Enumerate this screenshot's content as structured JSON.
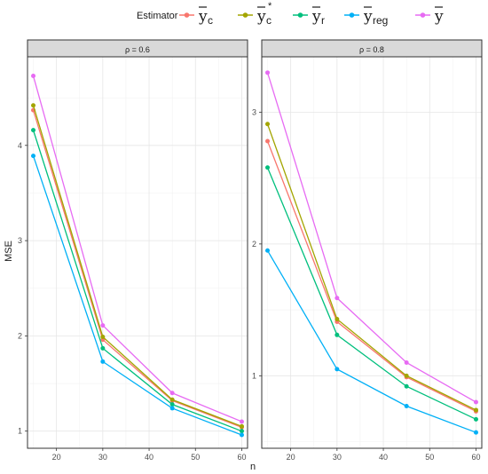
{
  "legend": {
    "title": "Estimator",
    "entries": [
      {
        "key": "yc",
        "main": "y",
        "sub": "c",
        "sup": "",
        "color": "#F8766D"
      },
      {
        "key": "yc_star",
        "main": "y",
        "sub": "c",
        "sup": "*",
        "color": "#A3A500"
      },
      {
        "key": "yr",
        "main": "y",
        "sub": "r",
        "sup": "",
        "color": "#00BF7D"
      },
      {
        "key": "yreg",
        "main": "y",
        "sub": "reg",
        "sup": "",
        "color": "#00B0F6"
      },
      {
        "key": "ybar",
        "main": "y",
        "sub": "",
        "sup": "",
        "color": "#E76BF3"
      }
    ]
  },
  "ylabel": "MSE",
  "xlabel": "n",
  "chart_data": [
    {
      "type": "line",
      "strip": "ρ = 0.6",
      "x": [
        15,
        30,
        45,
        60
      ],
      "xticks": [
        20,
        30,
        40,
        50,
        60
      ],
      "xlim": [
        13.75,
        61.25
      ],
      "yticks": [
        1,
        2,
        3,
        4
      ],
      "ylim": [
        0.82,
        4.93
      ],
      "grid": true,
      "series": [
        {
          "key": "yc",
          "values": [
            4.37,
            1.96,
            1.32,
            1.04
          ]
        },
        {
          "key": "yc_star",
          "values": [
            4.42,
            1.99,
            1.33,
            1.05
          ]
        },
        {
          "key": "yr",
          "values": [
            4.16,
            1.87,
            1.28,
            1.0
          ]
        },
        {
          "key": "yreg",
          "values": [
            3.89,
            1.73,
            1.24,
            0.96
          ]
        },
        {
          "key": "ybar",
          "values": [
            4.73,
            2.11,
            1.4,
            1.1
          ]
        }
      ]
    },
    {
      "type": "line",
      "strip": "ρ = 0.8",
      "x": [
        15,
        30,
        45,
        60
      ],
      "xticks": [
        20,
        30,
        40,
        50,
        60
      ],
      "xlim": [
        13.75,
        61.25
      ],
      "yticks": [
        1,
        2,
        3
      ],
      "ylim": [
        0.45,
        3.42
      ],
      "grid": true,
      "series": [
        {
          "key": "yc",
          "values": [
            2.78,
            1.41,
            0.99,
            0.73
          ]
        },
        {
          "key": "yc_star",
          "values": [
            2.91,
            1.43,
            1.0,
            0.74
          ]
        },
        {
          "key": "yr",
          "values": [
            2.58,
            1.31,
            0.92,
            0.67
          ]
        },
        {
          "key": "yreg",
          "values": [
            1.95,
            1.05,
            0.77,
            0.57
          ]
        },
        {
          "key": "ybar",
          "values": [
            3.3,
            1.59,
            1.1,
            0.8
          ]
        }
      ]
    }
  ]
}
